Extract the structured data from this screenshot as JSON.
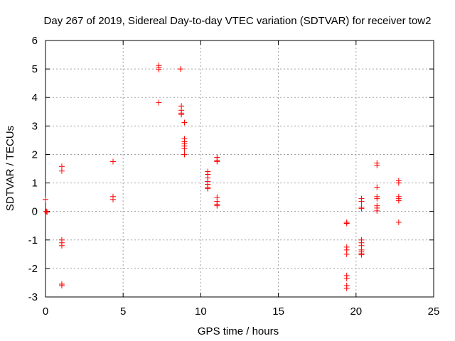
{
  "chart_data": {
    "type": "scatter",
    "title": "Day 267 of 2019, Sidereal Day-to-day VTEC variation (SDTVAR) for receiver tow2",
    "xlabel": "GPS time / hours",
    "ylabel": "SDTVAR / TECUs",
    "xlim": [
      0,
      25
    ],
    "ylim": [
      -3,
      6
    ],
    "xticks": [
      0,
      5,
      10,
      15,
      20,
      25
    ],
    "yticks": [
      -3,
      -2,
      -1,
      0,
      1,
      2,
      3,
      4,
      5,
      6
    ],
    "xtick_labels": [
      "0",
      "5",
      "10",
      "15",
      "20",
      "25"
    ],
    "ytick_labels": [
      "-3",
      "-2",
      "-1",
      "0",
      "1",
      "2",
      "3",
      "4",
      "5",
      "6"
    ],
    "grid": true,
    "marker": "+",
    "marker_color": "#ff0000",
    "series": [
      {
        "name": "SDTVAR",
        "points": [
          [
            0.0,
            0.42
          ],
          [
            0.05,
            0.0
          ],
          [
            0.1,
            -0.02
          ],
          [
            1.05,
            1.58
          ],
          [
            1.05,
            1.42
          ],
          [
            1.05,
            -1.0
          ],
          [
            1.05,
            -1.1
          ],
          [
            1.05,
            -1.2
          ],
          [
            1.05,
            -2.55
          ],
          [
            1.05,
            -2.6
          ],
          [
            4.35,
            1.75
          ],
          [
            4.35,
            0.52
          ],
          [
            4.35,
            0.42
          ],
          [
            7.3,
            5.12
          ],
          [
            7.3,
            5.05
          ],
          [
            7.3,
            4.98
          ],
          [
            7.3,
            3.82
          ],
          [
            8.7,
            5.0
          ],
          [
            8.75,
            3.7
          ],
          [
            8.75,
            3.55
          ],
          [
            8.75,
            3.45
          ],
          [
            8.75,
            3.4
          ],
          [
            8.95,
            3.12
          ],
          [
            8.95,
            2.55
          ],
          [
            8.95,
            2.45
          ],
          [
            8.95,
            2.38
          ],
          [
            8.95,
            2.3
          ],
          [
            8.95,
            2.2
          ],
          [
            8.95,
            2.0
          ],
          [
            10.45,
            1.4
          ],
          [
            10.45,
            1.3
          ],
          [
            10.45,
            1.18
          ],
          [
            10.45,
            1.05
          ],
          [
            10.45,
            0.95
          ],
          [
            10.45,
            0.85
          ],
          [
            10.45,
            0.8
          ],
          [
            11.05,
            1.9
          ],
          [
            11.05,
            1.8
          ],
          [
            11.05,
            1.75
          ],
          [
            11.05,
            0.5
          ],
          [
            11.05,
            0.35
          ],
          [
            11.05,
            0.25
          ],
          [
            11.05,
            0.2
          ],
          [
            19.4,
            -0.38
          ],
          [
            19.4,
            -0.42
          ],
          [
            19.4,
            -1.25
          ],
          [
            19.4,
            -1.35
          ],
          [
            19.4,
            -1.5
          ],
          [
            19.4,
            -2.25
          ],
          [
            19.4,
            -2.35
          ],
          [
            19.4,
            -2.6
          ],
          [
            19.4,
            -2.7
          ],
          [
            20.35,
            0.45
          ],
          [
            20.35,
            0.35
          ],
          [
            20.35,
            0.15
          ],
          [
            20.35,
            0.1
          ],
          [
            20.35,
            -1.0
          ],
          [
            20.35,
            -1.1
          ],
          [
            20.35,
            -1.2
          ],
          [
            20.35,
            -1.35
          ],
          [
            20.35,
            -1.42
          ],
          [
            20.35,
            -1.48
          ],
          [
            20.35,
            -1.52
          ],
          [
            21.35,
            1.7
          ],
          [
            21.35,
            1.62
          ],
          [
            21.35,
            0.85
          ],
          [
            21.35,
            0.52
          ],
          [
            21.35,
            0.45
          ],
          [
            21.35,
            0.2
          ],
          [
            21.35,
            0.12
          ],
          [
            21.35,
            0.02
          ],
          [
            22.75,
            1.08
          ],
          [
            22.75,
            1.0
          ],
          [
            22.75,
            0.52
          ],
          [
            22.75,
            0.45
          ],
          [
            22.75,
            0.38
          ],
          [
            22.75,
            -0.38
          ]
        ]
      }
    ]
  }
}
